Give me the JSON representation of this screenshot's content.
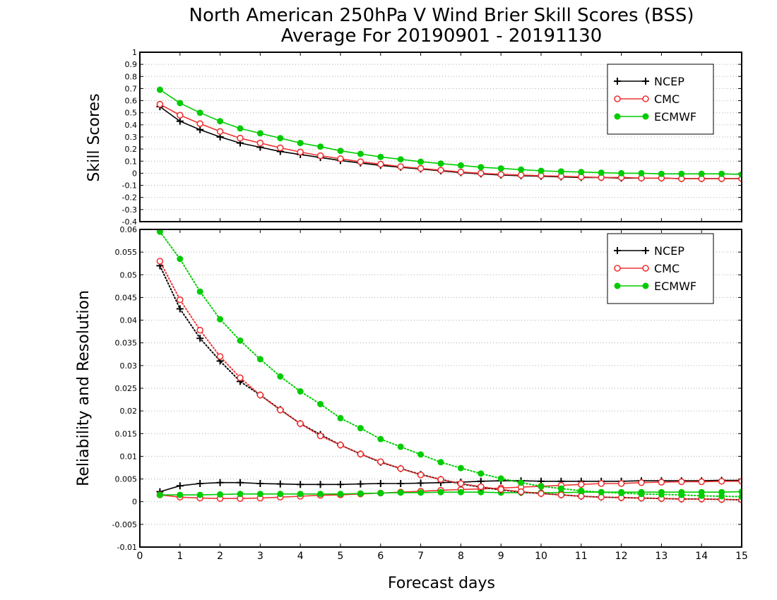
{
  "chart_data": [
    {
      "type": "line",
      "title": "North American 250hPa V Wind Brier Skill Scores (BSS)",
      "subtitle": "Average For 20190901 - 20191130",
      "xlabel": "",
      "ylabel": "Skill Scores",
      "xlim": [
        0,
        15
      ],
      "ylim": [
        -0.4,
        1
      ],
      "x_ticks": [
        "0",
        "1",
        "2",
        "3",
        "4",
        "5",
        "6",
        "7",
        "8",
        "9",
        "10",
        "11",
        "12",
        "13",
        "14",
        "15"
      ],
      "y_ticks": [
        "-0.4",
        "-0.3",
        "-0.2",
        "-0.1",
        "0",
        "0.1",
        "0.2",
        "0.3",
        "0.4",
        "0.5",
        "0.6",
        "0.7",
        "0.8",
        "0.9",
        "1"
      ],
      "grid": "horizontal dotted",
      "legend_position": "top-right",
      "x": [
        0.5,
        1,
        1.5,
        2,
        2.5,
        3,
        3.5,
        4,
        4.5,
        5,
        5.5,
        6,
        6.5,
        7,
        7.5,
        8,
        8.5,
        9,
        9.5,
        10,
        10.5,
        11,
        11.5,
        12,
        12.5,
        13,
        13.5,
        14,
        14.5,
        15
      ],
      "series": [
        {
          "name": "NCEP",
          "color": "#000000",
          "marker": "plus",
          "values": [
            0.55,
            0.43,
            0.36,
            0.3,
            0.25,
            0.215,
            0.18,
            0.155,
            0.13,
            0.105,
            0.085,
            0.065,
            0.05,
            0.035,
            0.02,
            0.005,
            -0.005,
            -0.015,
            -0.02,
            -0.025,
            -0.03,
            -0.035,
            -0.035,
            -0.04,
            -0.04,
            -0.04,
            -0.045,
            -0.045,
            -0.045,
            -0.045
          ]
        },
        {
          "name": "CMC",
          "color": "#ee3333",
          "marker": "open-circle",
          "values": [
            0.57,
            0.48,
            0.41,
            0.345,
            0.29,
            0.25,
            0.21,
            0.175,
            0.145,
            0.12,
            0.095,
            0.075,
            0.055,
            0.04,
            0.025,
            0.01,
            0.0,
            -0.01,
            -0.015,
            -0.02,
            -0.025,
            -0.03,
            -0.035,
            -0.035,
            -0.04,
            -0.04,
            -0.045,
            -0.045,
            -0.045,
            -0.045
          ]
        },
        {
          "name": "ECMWF",
          "color": "#00cc00",
          "marker": "filled-circle",
          "values": [
            0.69,
            0.58,
            0.5,
            0.43,
            0.37,
            0.33,
            0.29,
            0.25,
            0.22,
            0.185,
            0.16,
            0.135,
            0.115,
            0.095,
            0.08,
            0.065,
            0.05,
            0.04,
            0.03,
            0.02,
            0.015,
            0.01,
            0.005,
            0.0,
            0.0,
            -0.005,
            -0.005,
            -0.005,
            -0.005,
            -0.01
          ]
        }
      ]
    },
    {
      "type": "line",
      "title": "",
      "xlabel": "Forecast days",
      "ylabel": "Reliability and Resolution",
      "xlim": [
        0,
        15
      ],
      "ylim": [
        -0.01,
        0.06
      ],
      "x_ticks": [
        "0",
        "1",
        "2",
        "3",
        "4",
        "5",
        "6",
        "7",
        "8",
        "9",
        "10",
        "11",
        "12",
        "13",
        "14",
        "15"
      ],
      "y_ticks": [
        "-0.01",
        "-0.005",
        "0",
        "0.005",
        "0.01",
        "0.015",
        "0.02",
        "0.025",
        "0.03",
        "0.035",
        "0.04",
        "0.045",
        "0.05",
        "0.055",
        "0.06"
      ],
      "grid": "horizontal dotted",
      "legend_position": "top-right",
      "x": [
        0.5,
        1,
        1.5,
        2,
        2.5,
        3,
        3.5,
        4,
        4.5,
        5,
        5.5,
        6,
        6.5,
        7,
        7.5,
        8,
        8.5,
        9,
        9.5,
        10,
        10.5,
        11,
        11.5,
        12,
        12.5,
        13,
        13.5,
        14,
        14.5,
        15
      ],
      "series": [
        {
          "name": "NCEP",
          "color": "#000000",
          "marker": "plus",
          "line_style": "solid",
          "component": "reliability",
          "values": [
            0.0022,
            0.0035,
            0.004,
            0.0042,
            0.0042,
            0.004,
            0.0039,
            0.0038,
            0.0038,
            0.0038,
            0.0039,
            0.004,
            0.004,
            0.0041,
            0.0042,
            0.0043,
            0.0045,
            0.0046,
            0.0046,
            0.0045,
            0.0045,
            0.0045,
            0.0045,
            0.0045,
            0.0046,
            0.0046,
            0.0046,
            0.0046,
            0.0047,
            0.0047
          ]
        },
        {
          "name": "CMC",
          "color": "#ee3333",
          "marker": "open-circle",
          "line_style": "solid",
          "component": "reliability",
          "values": [
            0.0015,
            0.001,
            0.0008,
            0.0007,
            0.0007,
            0.0008,
            0.001,
            0.0012,
            0.0014,
            0.0015,
            0.0017,
            0.0019,
            0.0021,
            0.0023,
            0.0025,
            0.0027,
            0.0028,
            0.003,
            0.0032,
            0.0034,
            0.0036,
            0.0038,
            0.004,
            0.004,
            0.0042,
            0.0043,
            0.0044,
            0.0044,
            0.0045,
            0.0045
          ]
        },
        {
          "name": "ECMWF",
          "color": "#00cc00",
          "marker": "filled-circle",
          "line_style": "solid",
          "component": "reliability",
          "values": [
            0.0015,
            0.0015,
            0.0015,
            0.0016,
            0.0017,
            0.0017,
            0.0017,
            0.0017,
            0.0017,
            0.0017,
            0.0018,
            0.0019,
            0.002,
            0.002,
            0.0021,
            0.0021,
            0.0021,
            0.002,
            0.002,
            0.002,
            0.002,
            0.0021,
            0.0021,
            0.0021,
            0.0021,
            0.0021,
            0.0021,
            0.0021,
            0.0021,
            0.0022
          ]
        },
        {
          "name": "NCEP",
          "color": "#000000",
          "marker": "plus",
          "line_style": "dotted",
          "component": "resolution",
          "values": [
            0.052,
            0.0425,
            0.036,
            0.031,
            0.0265,
            0.0235,
            0.0203,
            0.0172,
            0.0148,
            0.0125,
            0.0105,
            0.0087,
            0.0073,
            0.006,
            0.0049,
            0.0039,
            0.0032,
            0.0026,
            0.0021,
            0.0018,
            0.0015,
            0.0012,
            0.001,
            0.0009,
            0.0008,
            0.0007,
            0.0006,
            0.0006,
            0.0005,
            0.0004
          ]
        },
        {
          "name": "CMC",
          "color": "#ee3333",
          "marker": "open-circle",
          "line_style": "dotted",
          "component": "resolution",
          "values": [
            0.053,
            0.0445,
            0.0378,
            0.032,
            0.0273,
            0.0235,
            0.0202,
            0.0172,
            0.0145,
            0.0125,
            0.0105,
            0.0088,
            0.0073,
            0.0059,
            0.0049,
            0.004,
            0.0033,
            0.0027,
            0.0022,
            0.0018,
            0.0015,
            0.0012,
            0.001,
            0.0009,
            0.0008,
            0.0007,
            0.0006,
            0.0006,
            0.0005,
            0.0004
          ]
        },
        {
          "name": "ECMWF",
          "color": "#00cc00",
          "marker": "filled-circle",
          "line_style": "dotted",
          "component": "resolution",
          "values": [
            0.0595,
            0.0535,
            0.0463,
            0.0402,
            0.0355,
            0.0314,
            0.0276,
            0.0243,
            0.0215,
            0.0184,
            0.0162,
            0.0138,
            0.0121,
            0.0104,
            0.0087,
            0.0074,
            0.0062,
            0.0051,
            0.0042,
            0.0034,
            0.0029,
            0.0024,
            0.0021,
            0.0019,
            0.0017,
            0.0016,
            0.0015,
            0.0013,
            0.0012,
            0.0011
          ]
        }
      ]
    }
  ]
}
